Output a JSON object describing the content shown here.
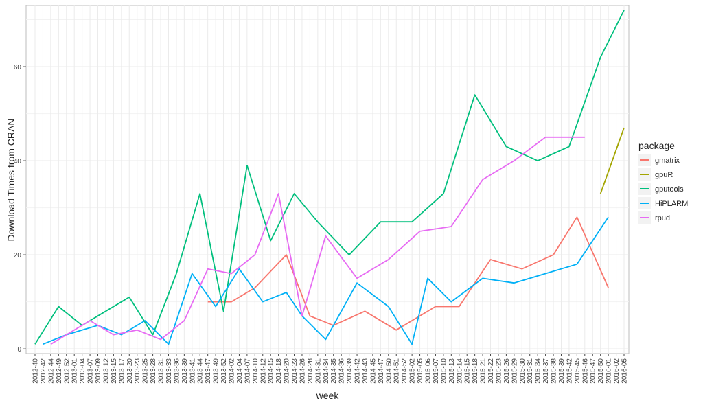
{
  "chart_data": {
    "type": "line",
    "xlabel": "week",
    "ylabel": "Download Times from CRAN",
    "ylim": [
      -1,
      73
    ],
    "y_ticks": [
      0,
      20,
      40,
      60
    ],
    "grid": true,
    "legend_placement": "right",
    "legend_title": "package",
    "categories": [
      "2012-40",
      "2012-42",
      "2012-44",
      "2012-49",
      "2012-52",
      "2013-01",
      "2013-04",
      "2013-07",
      "2013-09",
      "2013-12",
      "2013-15",
      "2013-17",
      "2013-20",
      "2013-23",
      "2013-25",
      "2013-28",
      "2013-31",
      "2013-33",
      "2013-36",
      "2013-39",
      "2013-41",
      "2013-44",
      "2013-47",
      "2013-49",
      "2013-52",
      "2014-02",
      "2014-04",
      "2014-07",
      "2014-10",
      "2014-12",
      "2014-15",
      "2014-18",
      "2014-20",
      "2014-23",
      "2014-26",
      "2014-28",
      "2014-31",
      "2014-34",
      "2014-35",
      "2014-36",
      "2014-39",
      "2014-42",
      "2014-43",
      "2014-45",
      "2014-47",
      "2014-50",
      "2014-51",
      "2014-52",
      "2015-02",
      "2015-05",
      "2015-06",
      "2015-07",
      "2015-10",
      "2015-13",
      "2015-14",
      "2015-15",
      "2015-18",
      "2015-21",
      "2015-22",
      "2015-23",
      "2015-26",
      "2015-29",
      "2015-30",
      "2015-31",
      "2015-34",
      "2015-37",
      "2015-38",
      "2015-39",
      "2015-42",
      "2015-45",
      "2015-46",
      "2015-47",
      "2015-50",
      "2016-01",
      "2016-02",
      "2016-05"
    ],
    "series": [
      {
        "name": "gmatrix",
        "color": "#F8766D",
        "points": [
          [
            "2013-47",
            10
          ],
          [
            "2014-02",
            10
          ],
          [
            "2014-10",
            13
          ],
          [
            "2014-20",
            20
          ],
          [
            "2014-28",
            7
          ],
          [
            "2014-35",
            5
          ],
          [
            "2014-43",
            8
          ],
          [
            "2014-51",
            4
          ],
          [
            "2015-07",
            9
          ],
          [
            "2015-14",
            9
          ],
          [
            "2015-22",
            19
          ],
          [
            "2015-30",
            17
          ],
          [
            "2015-38",
            20
          ],
          [
            "2015-45",
            28
          ],
          [
            "2016-01",
            13
          ]
        ]
      },
      {
        "name": "gpuR",
        "color": "#A3A500",
        "points": [
          [
            "2015-50",
            33
          ],
          [
            "2016-05",
            47
          ]
        ]
      },
      {
        "name": "gputools",
        "color": "#00BF7D",
        "points": [
          [
            "2012-40",
            1
          ],
          [
            "2012-49",
            9
          ],
          [
            "2013-04",
            5
          ],
          [
            "2013-20",
            11
          ],
          [
            "2013-28",
            3
          ],
          [
            "2013-36",
            16
          ],
          [
            "2013-44",
            33
          ],
          [
            "2013-52",
            8
          ],
          [
            "2014-07",
            39
          ],
          [
            "2014-15",
            23
          ],
          [
            "2014-23",
            33
          ],
          [
            "2014-31",
            27
          ],
          [
            "2014-39",
            20
          ],
          [
            "2014-47",
            27
          ],
          [
            "2015-02",
            27
          ],
          [
            "2015-10",
            33
          ],
          [
            "2015-18",
            54
          ],
          [
            "2015-26",
            43
          ],
          [
            "2015-34",
            40
          ],
          [
            "2015-42",
            43
          ],
          [
            "2015-50",
            62
          ],
          [
            "2016-05",
            72
          ]
        ]
      },
      {
        "name": "HiPLARM",
        "color": "#00B0F6",
        "points": [
          [
            "2012-42",
            1
          ],
          [
            "2012-52",
            3
          ],
          [
            "2013-09",
            5
          ],
          [
            "2013-17",
            3
          ],
          [
            "2013-25",
            6
          ],
          [
            "2013-33",
            1
          ],
          [
            "2013-41",
            16
          ],
          [
            "2013-49",
            9
          ],
          [
            "2014-04",
            17
          ],
          [
            "2014-12",
            10
          ],
          [
            "2014-20",
            12
          ],
          [
            "2014-26",
            7
          ],
          [
            "2014-34",
            2
          ],
          [
            "2014-42",
            14
          ],
          [
            "2014-50",
            9
          ],
          [
            "2015-02",
            1
          ],
          [
            "2015-06",
            15
          ],
          [
            "2015-13",
            10
          ],
          [
            "2015-21",
            15
          ],
          [
            "2015-29",
            14
          ],
          [
            "2015-37",
            16
          ],
          [
            "2015-45",
            18
          ],
          [
            "2016-01",
            28
          ]
        ]
      },
      {
        "name": "rpud",
        "color": "#E76BF3",
        "points": [
          [
            "2012-44",
            1
          ],
          [
            "2013-07",
            6
          ],
          [
            "2013-15",
            3
          ],
          [
            "2013-23",
            4
          ],
          [
            "2013-31",
            2
          ],
          [
            "2013-39",
            6
          ],
          [
            "2013-47",
            17
          ],
          [
            "2014-02",
            16
          ],
          [
            "2014-10",
            20
          ],
          [
            "2014-18",
            33
          ],
          [
            "2014-26",
            7
          ],
          [
            "2014-34",
            24
          ],
          [
            "2014-42",
            15
          ],
          [
            "2014-50",
            19
          ],
          [
            "2015-05",
            25
          ],
          [
            "2015-13",
            26
          ],
          [
            "2015-21",
            36
          ],
          [
            "2015-29",
            40
          ],
          [
            "2015-37",
            45
          ],
          [
            "2015-46",
            45
          ]
        ]
      }
    ]
  }
}
